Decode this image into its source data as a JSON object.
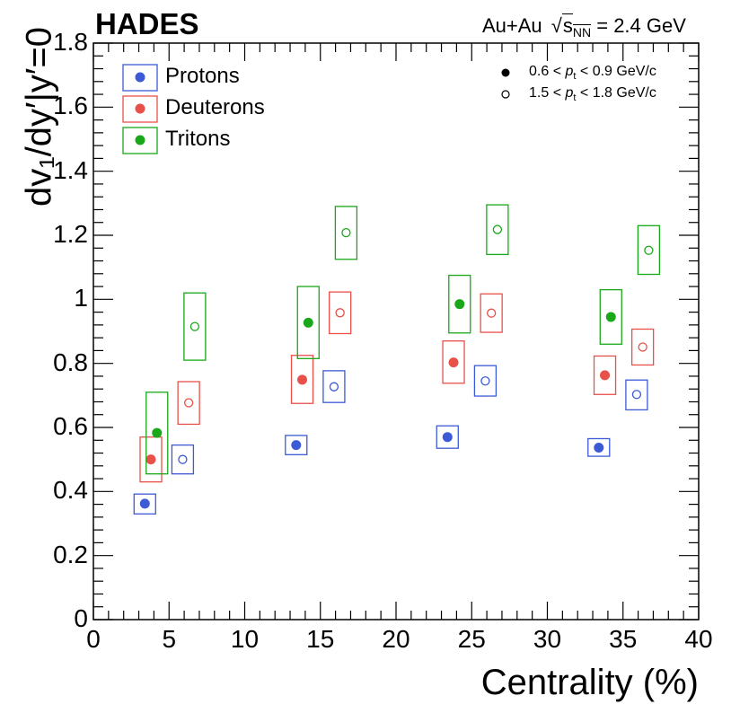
{
  "chart_data": {
    "type": "scatter",
    "title": "HADES",
    "collision": "Au+Au",
    "energy_sqrt": "s",
    "energy_sub": "NN",
    "energy_value": "= 2.4 GeV",
    "xlabel": "Centrality (%)",
    "ylabel": "dv₁/dy′|y′=0",
    "xlim": [
      0,
      40
    ],
    "ylim": [
      0,
      1.8
    ],
    "x_ticks": [
      "0",
      "5",
      "10",
      "15",
      "20",
      "25",
      "30",
      "35",
      "40"
    ],
    "y_ticks": [
      "0",
      "0.2",
      "0.4",
      "0.6",
      "0.8",
      "1",
      "1.2",
      "1.4",
      "1.6",
      "1.8"
    ],
    "legend_species": [
      {
        "name": "Protons",
        "color": "#3c5ad6"
      },
      {
        "name": "Deuterons",
        "color": "#e8504a"
      },
      {
        "name": "Tritons",
        "color": "#19a819"
      }
    ],
    "legend_pt": [
      {
        "marker": "filled",
        "label_pre": "0.6 < ",
        "label_var": "p",
        "label_sub": "t",
        "label_post": " < 0.9 GeV/c"
      },
      {
        "marker": "open",
        "label_pre": "1.5 < ",
        "label_var": "p",
        "label_sub": "t",
        "label_post": " < 1.8 GeV/c"
      }
    ],
    "series": [
      {
        "name": "Protons 0.6<pt<0.9",
        "species": "Protons",
        "marker": "filled",
        "color": "#3c5ad6",
        "x": [
          3.4,
          13.4,
          23.4,
          33.4
        ],
        "y": [
          0.362,
          0.545,
          0.57,
          0.537
        ],
        "sys_lo": [
          0.33,
          0.515,
          0.535,
          0.51
        ],
        "sys_hi": [
          0.392,
          0.575,
          0.605,
          0.565
        ]
      },
      {
        "name": "Protons 1.5<pt<1.8",
        "species": "Protons",
        "marker": "open",
        "color": "#3c5ad6",
        "x": [
          5.9,
          15.9,
          25.9,
          35.9
        ],
        "y": [
          0.5,
          0.727,
          0.745,
          0.703
        ],
        "sys_lo": [
          0.455,
          0.678,
          0.698,
          0.655
        ],
        "sys_hi": [
          0.545,
          0.777,
          0.793,
          0.748
        ]
      },
      {
        "name": "Deuterons 0.6<pt<0.9",
        "species": "Deuterons",
        "marker": "filled",
        "color": "#e8504a",
        "x": [
          3.8,
          13.8,
          23.8,
          33.8
        ],
        "y": [
          0.5,
          0.749,
          0.803,
          0.763
        ],
        "sys_lo": [
          0.43,
          0.675,
          0.738,
          0.703
        ],
        "sys_hi": [
          0.57,
          0.825,
          0.87,
          0.823
        ]
      },
      {
        "name": "Deuterons 1.5<pt<1.8",
        "species": "Deuterons",
        "marker": "open",
        "color": "#e8504a",
        "x": [
          6.3,
          16.3,
          26.3,
          36.3
        ],
        "y": [
          0.677,
          0.958,
          0.957,
          0.851
        ],
        "sys_lo": [
          0.61,
          0.893,
          0.897,
          0.795
        ],
        "sys_hi": [
          0.743,
          1.023,
          1.017,
          0.907
        ]
      },
      {
        "name": "Tritons 0.6<pt<0.9",
        "species": "Tritons",
        "marker": "filled",
        "color": "#19a819",
        "x": [
          4.2,
          14.2,
          24.2,
          34.2
        ],
        "y": [
          0.583,
          0.927,
          0.985,
          0.945
        ],
        "sys_lo": [
          0.455,
          0.815,
          0.895,
          0.86
        ],
        "sys_hi": [
          0.71,
          1.04,
          1.075,
          1.03
        ]
      },
      {
        "name": "Tritons 1.5<pt<1.8",
        "species": "Tritons",
        "marker": "open",
        "color": "#19a819",
        "x": [
          6.7,
          16.7,
          26.7,
          36.7
        ],
        "y": [
          0.915,
          1.208,
          1.218,
          1.153
        ],
        "sys_lo": [
          0.81,
          1.125,
          1.14,
          1.078
        ],
        "sys_hi": [
          1.02,
          1.29,
          1.295,
          1.23
        ]
      }
    ]
  }
}
